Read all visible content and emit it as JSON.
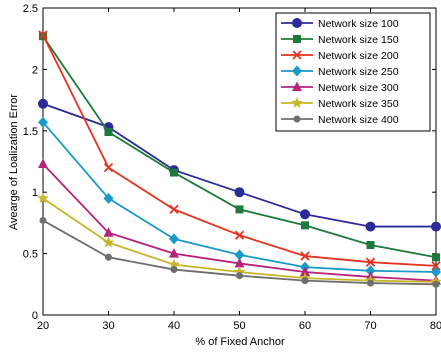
{
  "chart_data": {
    "type": "line",
    "xlabel": "% of Fixed Anchor",
    "ylabel": "Avearge of Loalization Error",
    "x": [
      20,
      30,
      40,
      50,
      60,
      70,
      80
    ],
    "xlim": [
      20,
      80
    ],
    "ylim": [
      0,
      2.5
    ],
    "xticks": [
      "20",
      "30",
      "40",
      "50",
      "60",
      "70",
      "80"
    ],
    "yticks": [
      "0",
      "0.5",
      "1",
      "1.5",
      "2",
      "2.5"
    ],
    "grid": false,
    "legend_position": "top-right",
    "series": [
      {
        "name": "Network size 100",
        "values": [
          1.72,
          1.53,
          1.18,
          1.0,
          0.82,
          0.72,
          0.72
        ],
        "color": "#2b2b9a",
        "marker": "circle"
      },
      {
        "name": "Network size 150",
        "values": [
          2.27,
          1.49,
          1.16,
          0.86,
          0.73,
          0.57,
          0.47
        ],
        "color": "#1e7a3a",
        "marker": "square"
      },
      {
        "name": "Network size 200",
        "values": [
          2.28,
          1.2,
          0.86,
          0.65,
          0.48,
          0.43,
          0.4
        ],
        "color": "#e8321e",
        "marker": "x"
      },
      {
        "name": "Network size 250",
        "values": [
          1.57,
          0.95,
          0.62,
          0.49,
          0.39,
          0.36,
          0.35
        ],
        "color": "#1a9ac8",
        "marker": "diamond"
      },
      {
        "name": "Network size 300",
        "values": [
          1.23,
          0.67,
          0.5,
          0.42,
          0.35,
          0.31,
          0.28
        ],
        "color": "#b8237a",
        "marker": "triangle"
      },
      {
        "name": "Network size 350",
        "values": [
          0.95,
          0.59,
          0.41,
          0.35,
          0.3,
          0.28,
          0.27
        ],
        "color": "#c7b52a",
        "marker": "star"
      },
      {
        "name": "Network size 400",
        "values": [
          0.77,
          0.47,
          0.37,
          0.32,
          0.28,
          0.26,
          0.25
        ],
        "color": "#6e6e6e",
        "marker": "dot"
      }
    ]
  }
}
